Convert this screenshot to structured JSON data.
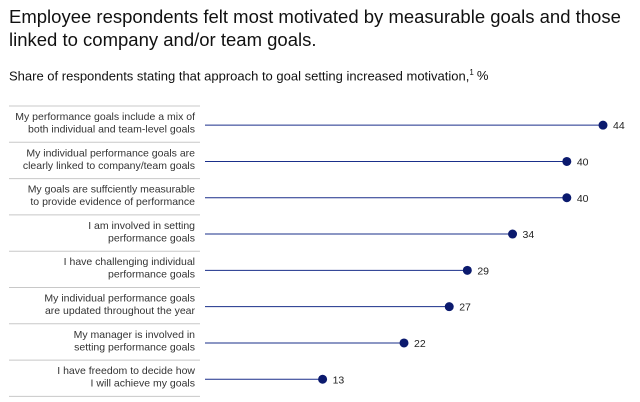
{
  "chart_data": {
    "type": "bar",
    "title": "Employee respondents felt most motivated by measurable goals and those linked to company and/or team goals.",
    "subtitle": "Share of respondents stating that approach to goal setting increased motivation,",
    "footnote_marker": "1",
    "unit": "%",
    "categories": [
      [
        "My performance goals include a mix of",
        "both individual and team-level goals"
      ],
      [
        "My individual performance goals are",
        "clearly linked to company/team goals"
      ],
      [
        "My goals are suffciently measurable",
        "to provide evidence of performance"
      ],
      [
        "I am involved in setting",
        "performance goals"
      ],
      [
        "I have challenging individual",
        "performance goals"
      ],
      [
        "My individual performance goals",
        "are updated throughout the year"
      ],
      [
        "My manager is involved in",
        "setting performance goals"
      ],
      [
        "I have freedom to decide how",
        "I will achieve my goals"
      ]
    ],
    "values": [
      44,
      40,
      40,
      34,
      29,
      27,
      22,
      13
    ],
    "colors": {
      "dot": "#0b1a6e",
      "stem": "#1a2f8a",
      "divider": "#c8c8c8"
    }
  }
}
